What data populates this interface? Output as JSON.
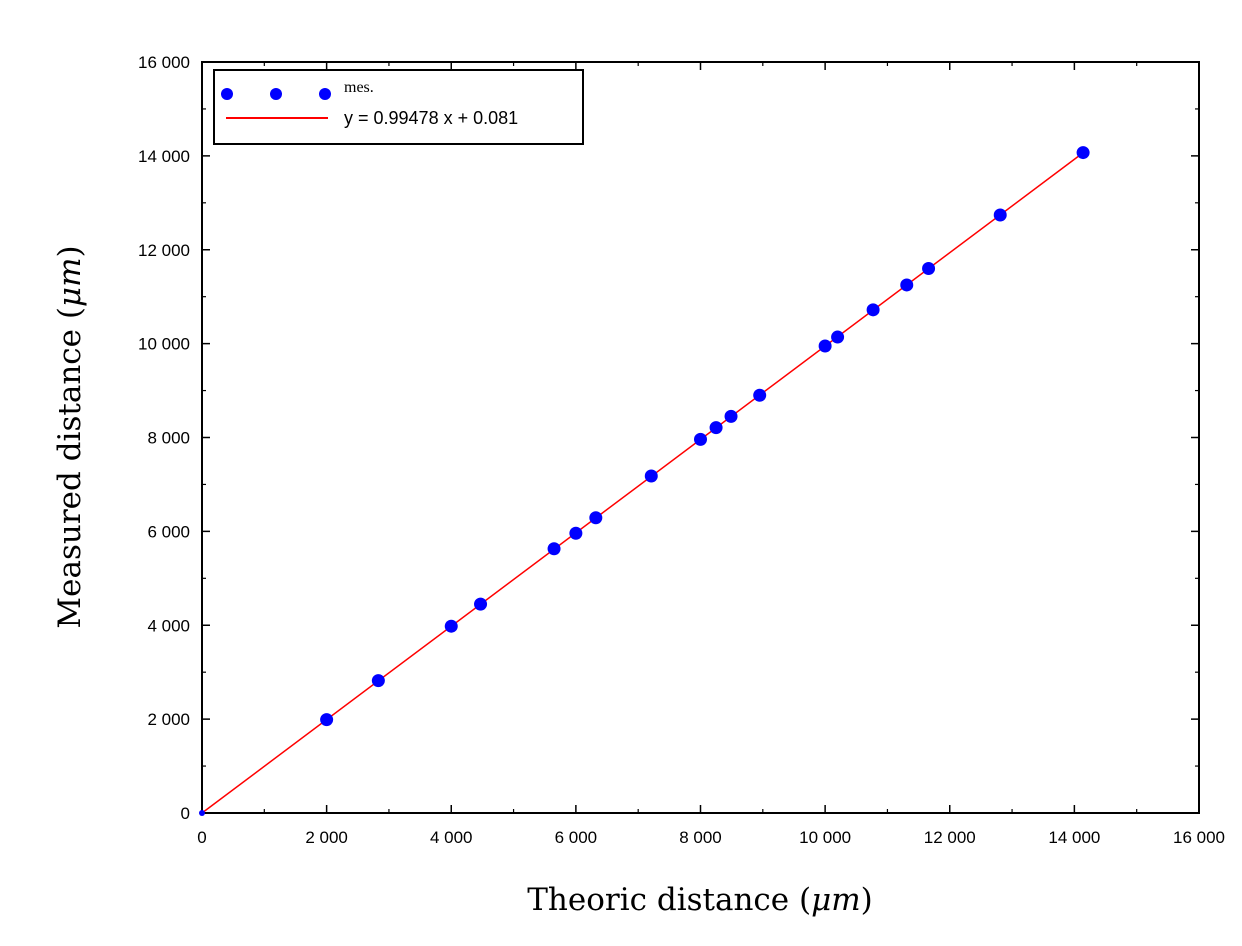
{
  "chart_data": {
    "type": "scatter",
    "title": "",
    "xlabel_text": "Theoric distance (",
    "xlabel_unit": "μm",
    "xlabel_close": ")",
    "ylabel_text": "Measured distance (",
    "ylabel_unit": "μm",
    "ylabel_close": ")",
    "xlim": [
      0,
      16000
    ],
    "ylim": [
      0,
      16000
    ],
    "x_ticks": [
      0,
      2000,
      4000,
      6000,
      8000,
      10000,
      12000,
      14000,
      16000
    ],
    "x_tick_labels": [
      "0",
      "2 000",
      "4 000",
      "6 000",
      "8 000",
      "10 000",
      "12 000",
      "14 000",
      "16 000"
    ],
    "y_ticks": [
      0,
      2000,
      4000,
      6000,
      8000,
      10000,
      12000,
      14000,
      16000
    ],
    "y_tick_labels": [
      "0",
      "2 000",
      "4 000",
      "6 000",
      "8 000",
      "10 000",
      "12 000",
      "14 000",
      "16 000"
    ],
    "grid": false,
    "legend_position": "top-left",
    "series": [
      {
        "name": "mes.",
        "kind": "scatter",
        "color": "#0000ff",
        "x": [
          0,
          2000,
          2830,
          4000,
          4470,
          5650,
          6000,
          6320,
          7210,
          8000,
          8250,
          8490,
          8950,
          10000,
          10200,
          10770,
          11310,
          11660,
          12810,
          14140
        ],
        "y": [
          0,
          1990,
          2820,
          3980,
          4450,
          5630,
          5960,
          6290,
          7180,
          7960,
          8210,
          8450,
          8900,
          9950,
          10140,
          10720,
          11250,
          11600,
          12740,
          14070
        ]
      },
      {
        "name": "y = 0.99478 x + 0.081",
        "kind": "line",
        "color": "#ff0000",
        "slope": 0.99478,
        "intercept": 0.081,
        "x_range": [
          0,
          14140
        ]
      }
    ]
  }
}
